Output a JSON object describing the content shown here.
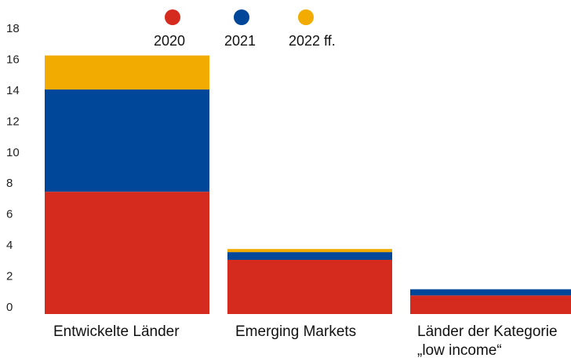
{
  "chart_data": {
    "type": "bar",
    "stacked": true,
    "title": "",
    "xlabel": "",
    "ylabel": "",
    "ylim": [
      0,
      18
    ],
    "yticks": [
      0,
      2,
      4,
      6,
      8,
      10,
      12,
      14,
      16,
      18
    ],
    "grid": false,
    "legend_position": "top",
    "categories": [
      [
        "Entwickelte Länder"
      ],
      [
        "Emerging Markets"
      ],
      [
        "Länder der Kategorie",
        "„low income“"
      ]
    ],
    "series": [
      {
        "name": "2020",
        "color": "#d52b1e",
        "values": [
          7.9,
          3.5,
          1.2
        ]
      },
      {
        "name": "2021",
        "color": "#00479a",
        "values": [
          6.6,
          0.5,
          0.4
        ]
      },
      {
        "name": "2022 ff.",
        "color": "#f2ab00",
        "values": [
          2.2,
          0.2,
          0.0
        ]
      }
    ]
  }
}
